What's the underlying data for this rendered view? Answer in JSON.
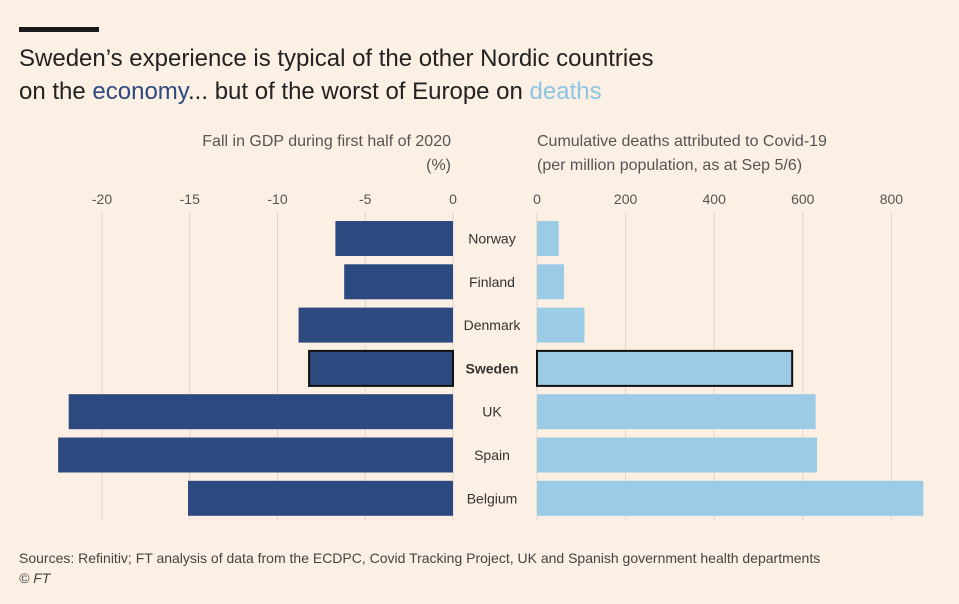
{
  "title_parts": {
    "line1": "Sweden’s experience is typical of the other Nordic countries",
    "pre": "on the ",
    "economy": "economy",
    "mid": "... but of the worst of Europe on ",
    "deaths": "deaths"
  },
  "colors": {
    "economy": "#2c4a7f",
    "deaths": "#9ccbe6",
    "background": "#fcefe3"
  },
  "left_subtitle": {
    "line1": "Fall in GDP during first half of 2020",
    "line2": "(%)"
  },
  "right_subtitle": {
    "line1": "Cumulative deaths attributed to Covid-19",
    "line2": "(per million population, as at Sep 5/6)"
  },
  "footer": {
    "sources": "Sources: Refinitiv; FT analysis of data from the ECDPC, Covid Tracking Project, UK and Spanish government health departments",
    "copyright": "© FT"
  },
  "chart_data": [
    {
      "type": "bar",
      "orientation": "horizontal",
      "title": "Fall in GDP during first half of 2020",
      "unit": "(%)",
      "categories": [
        "Norway",
        "Finland",
        "Denmark",
        "Sweden",
        "UK",
        "Spain",
        "Belgium"
      ],
      "values": [
        -6.7,
        -6.2,
        -8.8,
        -8.2,
        -21.9,
        -22.5,
        -15.1
      ],
      "highlight": "Sweden",
      "xlim": [
        -22.5,
        0
      ],
      "ticks": [
        -20,
        -15,
        -10,
        -5,
        0
      ],
      "tick_labels": [
        "-20",
        "-15",
        "-10",
        "-5",
        "0"
      ]
    },
    {
      "type": "bar",
      "orientation": "horizontal",
      "title": "Cumulative deaths attributed to Covid-19 (per million population, as at Sep 5/6)",
      "categories": [
        "Norway",
        "Finland",
        "Denmark",
        "Sweden",
        "UK",
        "Spain",
        "Belgium"
      ],
      "values": [
        49,
        61,
        107,
        576,
        629,
        632,
        872
      ],
      "highlight": "Sweden",
      "xlim": [
        0,
        872
      ],
      "ticks": [
        0,
        200,
        400,
        600,
        800
      ],
      "tick_labels": [
        "0",
        "200",
        "400",
        "600",
        "800"
      ]
    }
  ]
}
